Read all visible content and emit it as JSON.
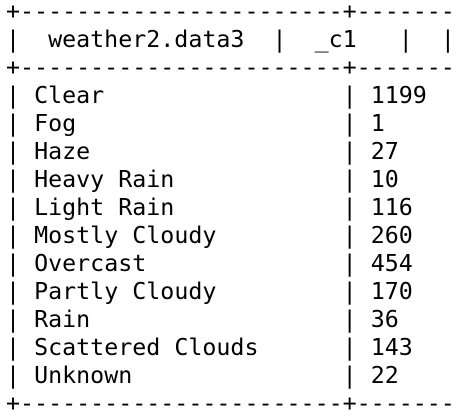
{
  "table": {
    "border_line": "+-----------------------+--------+--+",
    "header": {
      "col1": "weather2.data3",
      "col2": "_c1"
    },
    "rows": [
      {
        "condition": "Clear",
        "count": "1199"
      },
      {
        "condition": "Fog",
        "count": "1"
      },
      {
        "condition": "Haze",
        "count": "27"
      },
      {
        "condition": "Heavy Rain",
        "count": "10"
      },
      {
        "condition": "Light Rain",
        "count": "116"
      },
      {
        "condition": "Mostly Cloudy",
        "count": "260"
      },
      {
        "condition": "Overcast",
        "count": "454"
      },
      {
        "condition": "Partly Cloudy",
        "count": "170"
      },
      {
        "condition": "Rain",
        "count": "36"
      },
      {
        "condition": "Scattered Clouds",
        "count": "143"
      },
      {
        "condition": "Unknown",
        "count": "22"
      }
    ]
  }
}
